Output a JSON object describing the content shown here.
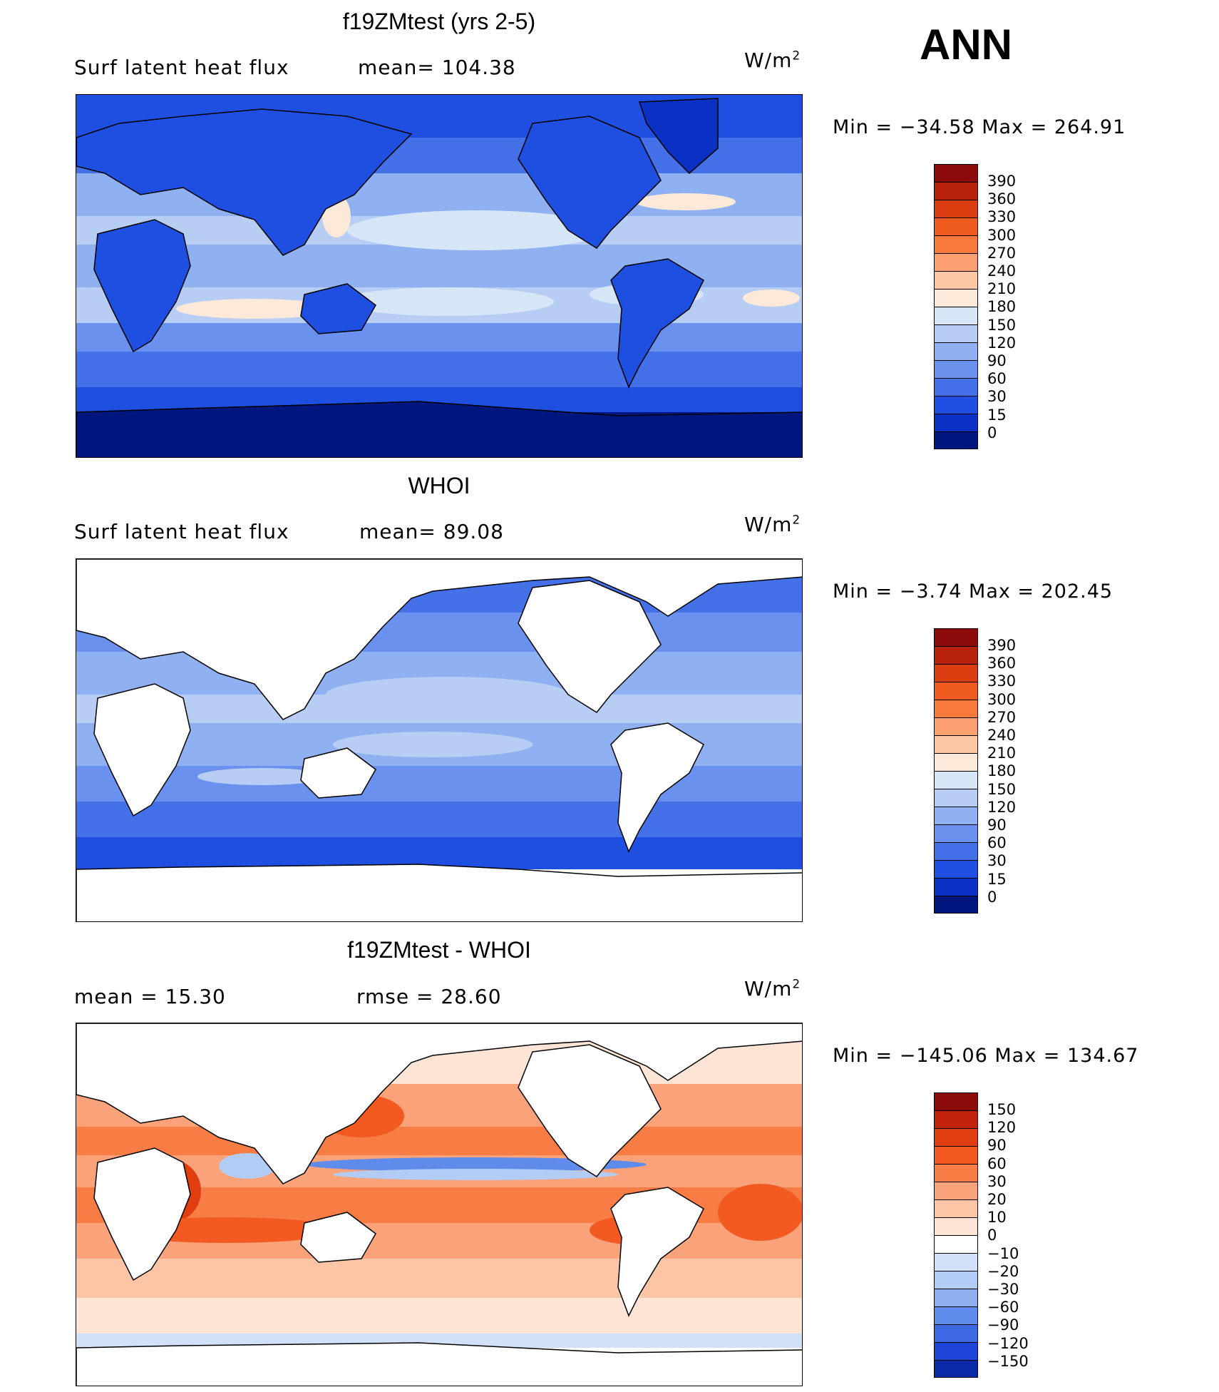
{
  "season": "ANN",
  "units": "W/m",
  "units_exp": "2",
  "panels": [
    {
      "title": "f19ZMtest (yrs 2-5)",
      "left_text": "Surf latent heat flux",
      "right_text": "mean= 104.38",
      "minmax": "Min = −34.58 Max = 264.91",
      "levels": [
        "390",
        "360",
        "330",
        "300",
        "270",
        "240",
        "210",
        "180",
        "150",
        "120",
        "90",
        "60",
        "30",
        "15",
        "0"
      ],
      "colors": [
        "#8b0a0a",
        "#b8220c",
        "#d93d10",
        "#ef5a1e",
        "#f77a3c",
        "#fba171",
        "#fcc7a4",
        "#fde9d9",
        "#d6e6f7",
        "#b7cdf3",
        "#8fb0f1",
        "#6b91ee",
        "#4471e8",
        "#1f4fe0",
        "#0a31c4",
        "#00167f"
      ],
      "mean": 104.38
    },
    {
      "title": "WHOI",
      "left_text": "Surf latent heat flux",
      "right_text": "mean=  89.08",
      "minmax": "Min =  −3.74 Max = 202.45",
      "levels": [
        "390",
        "360",
        "330",
        "300",
        "270",
        "240",
        "210",
        "180",
        "150",
        "120",
        "90",
        "60",
        "30",
        "15",
        "0"
      ],
      "colors": [
        "#8b0a0a",
        "#b8220c",
        "#d93d10",
        "#ef5a1e",
        "#f77a3c",
        "#fba171",
        "#fcc7a4",
        "#fde9d9",
        "#d6e6f7",
        "#b7cdf3",
        "#8fb0f1",
        "#6b91ee",
        "#4471e8",
        "#1f4fe0",
        "#0a31c4",
        "#00167f"
      ],
      "mean": 89.08
    },
    {
      "title": "f19ZMtest - WHOI",
      "left_text": "mean =   15.30",
      "right_text": "rmse =   28.60",
      "minmax": "Min = −145.06 Max = 134.67",
      "levels": [
        "150",
        "120",
        "90",
        "60",
        "30",
        "20",
        "10",
        "0",
        "−10",
        "−20",
        "−30",
        "−60",
        "−90",
        "−120",
        "−150"
      ],
      "colors": [
        "#8b0a0a",
        "#c0220c",
        "#e03d10",
        "#f25a22",
        "#f77d45",
        "#faa27a",
        "#fcc5a6",
        "#fde4d4",
        "#ffffff",
        "#d0e1f9",
        "#b2ccf5",
        "#8dafef",
        "#5f8cea",
        "#3d69e4",
        "#1c45d8",
        "#0a2aa8"
      ],
      "mean": 15.3,
      "rmse": 28.6
    }
  ],
  "chart_data": [
    {
      "type": "heatmap",
      "title": "f19ZMtest (yrs 2-5)",
      "variable": "Surf latent heat flux",
      "units": "W/m^2",
      "mean": 104.38,
      "min": -34.58,
      "max": 264.91,
      "contour_levels": [
        0,
        15,
        30,
        60,
        90,
        120,
        150,
        180,
        210,
        240,
        270,
        300,
        330,
        360,
        390
      ]
    },
    {
      "type": "heatmap",
      "title": "WHOI",
      "variable": "Surf latent heat flux",
      "units": "W/m^2",
      "mean": 89.08,
      "min": -3.74,
      "max": 202.45,
      "contour_levels": [
        0,
        15,
        30,
        60,
        90,
        120,
        150,
        180,
        210,
        240,
        270,
        300,
        330,
        360,
        390
      ]
    },
    {
      "type": "heatmap",
      "title": "f19ZMtest - WHOI",
      "units": "W/m^2",
      "mean": 15.3,
      "rmse": 28.6,
      "min": -145.06,
      "max": 134.67,
      "contour_levels": [
        -150,
        -120,
        -90,
        -60,
        -30,
        -20,
        -10,
        0,
        10,
        20,
        30,
        60,
        90,
        120,
        150
      ]
    }
  ]
}
